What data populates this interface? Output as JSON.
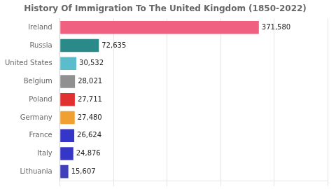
{
  "chart_data": {
    "type": "bar",
    "orientation": "horizontal",
    "title": "History Of Immigration To The United Kingdom (1850-2022)",
    "categories": [
      "Ireland",
      "Russia",
      "United States",
      "Belgium",
      "Poland",
      "Germany",
      "France",
      "Italy",
      "Lithuania"
    ],
    "values": [
      371580,
      72635,
      30532,
      28021,
      27711,
      27480,
      26624,
      24876,
      15607
    ],
    "value_labels": [
      "371,580",
      "72,635",
      "30,532",
      "28,021",
      "27,711",
      "27,480",
      "26,624",
      "24,876",
      "15,607"
    ],
    "colors": [
      "#f06080",
      "#2a8a8a",
      "#5bbccc",
      "#909090",
      "#e03030",
      "#f0a030",
      "#3535c8",
      "#3535c8",
      "#4040bb"
    ],
    "data_labels": true,
    "xlim": [
      0,
      500000
    ],
    "xticks": [
      0,
      100000,
      200000,
      300000,
      400000,
      500000
    ],
    "grid": true,
    "tick_labels": "y"
  }
}
